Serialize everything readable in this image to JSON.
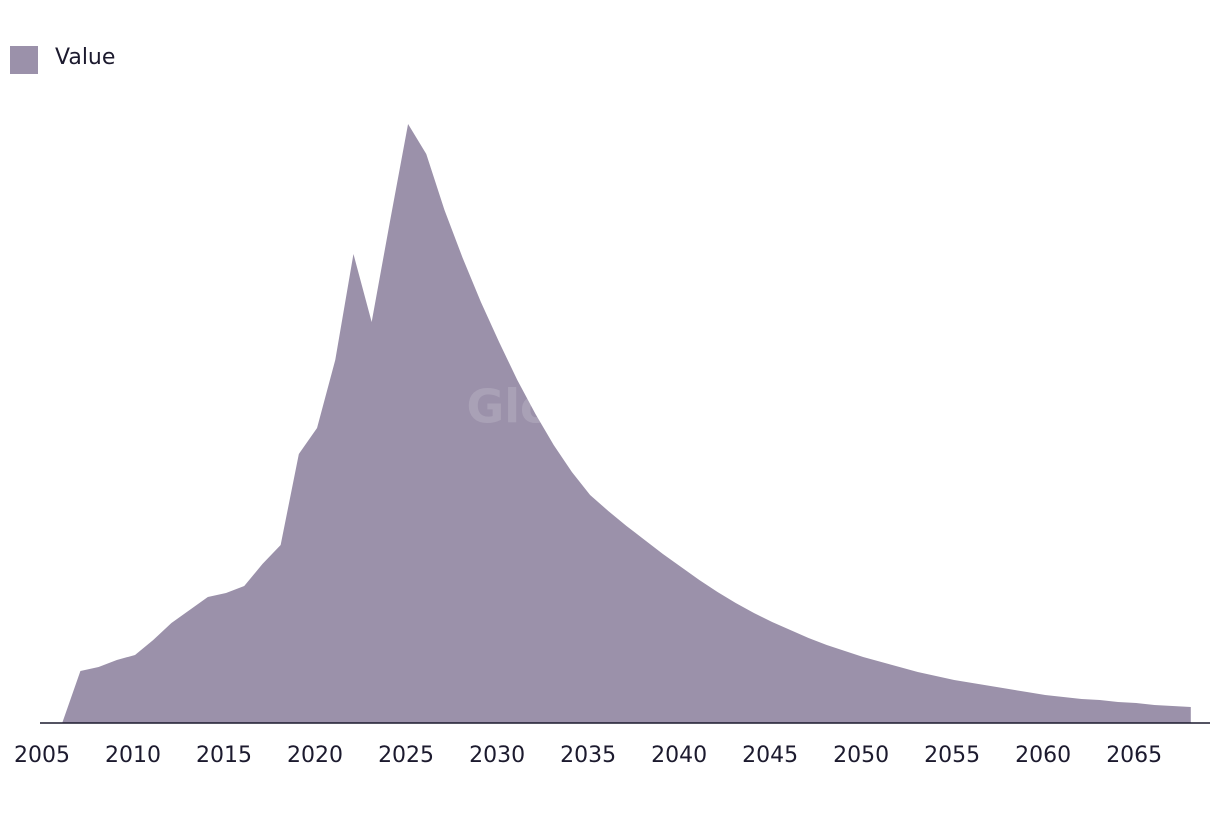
{
  "chart_data": {
    "type": "area",
    "watermark": "GlobalData",
    "x": [
      2006,
      2007,
      2008,
      2009,
      2010,
      2011,
      2012,
      2013,
      2014,
      2015,
      2016,
      2017,
      2018,
      2019,
      2020,
      2021,
      2022,
      2023,
      2024,
      2025,
      2026,
      2027,
      2028,
      2029,
      2030,
      2031,
      2032,
      2033,
      2034,
      2035,
      2036,
      2037,
      2038,
      2039,
      2040,
      2041,
      2042,
      2043,
      2044,
      2045,
      2046,
      2047,
      2048,
      2049,
      2050,
      2051,
      2052,
      2053,
      2054,
      2055,
      2056,
      2057,
      2058,
      2059,
      2060,
      2061,
      2062,
      2063,
      2064,
      2065,
      2066,
      2067,
      2068
    ],
    "series": [
      {
        "name": "Value",
        "color": "#9b91aa",
        "values": [
          0,
          52,
          56,
          63,
          68,
          83,
          100,
          113,
          126,
          130,
          137,
          159,
          178,
          269,
          295,
          363,
          469,
          401,
          501,
          599,
          569,
          513,
          465,
          421,
          381,
          343,
          309,
          278,
          251,
          228,
          212,
          197,
          183,
          169,
          156,
          143,
          131,
          120,
          110,
          101,
          93,
          85,
          78,
          72,
          66,
          61,
          56,
          51,
          47,
          43,
          40,
          37,
          34,
          31,
          28,
          26,
          24,
          23,
          21,
          20,
          18,
          17,
          16
        ]
      }
    ],
    "xlim": [
      2005,
      2069
    ],
    "xticks": [
      2005,
      2010,
      2015,
      2020,
      2025,
      2030,
      2035,
      2040,
      2045,
      2050,
      2055,
      2060,
      2065
    ],
    "legend": "top-left"
  }
}
